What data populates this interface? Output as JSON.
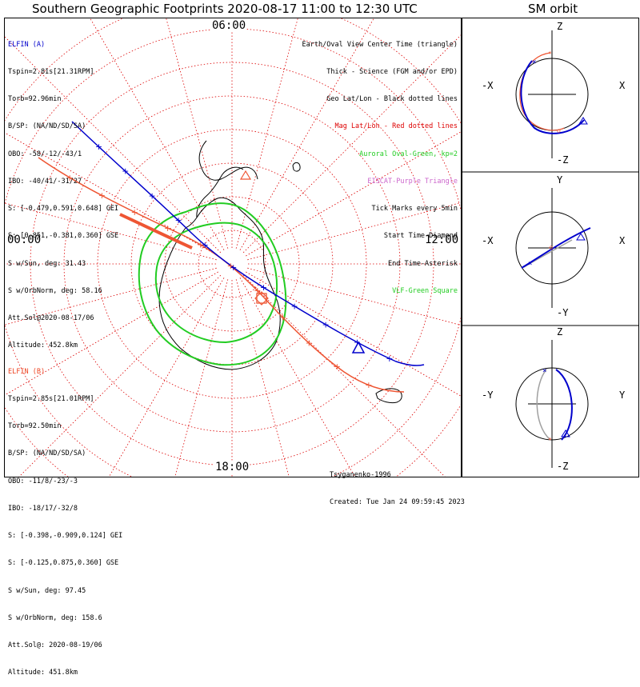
{
  "title": "Southern Geographic Footprints 2020-08-17 11:00 to 12:30 UTC",
  "orbit_title": "SM orbit",
  "hour_labels": {
    "top": "06:00",
    "left": "00:00",
    "right": "12:00",
    "bottom": "18:00"
  },
  "elfin_a": {
    "header": "ELFIN (A)",
    "lines": [
      "Tspin=2.81s[21.31RPM]",
      "Torb=92.96min",
      "B/SP: (NA/ND/SD/SA)",
      "OBO: -58/-12/-43/1",
      "IBO: -40/41/-31/27",
      "S: [-0.479,0.591,0.648] GEI",
      "S: [0.851,-0.381,0.360] GSE",
      "S w/Sun, deg: 31.43",
      "S w/OrbNorm, deg: 58.16",
      "Att.Sol@2020-08-17/06",
      "Altitude: 452.8km"
    ]
  },
  "elfin_b": {
    "header": "ELFIN (B)",
    "lines": [
      "Tspin=2.85s[21.01RPM]",
      "Torb=92.50min",
      "B/SP: (NA/ND/SD/SA)",
      "OBO: -11/8/-23/-3",
      "IBO: -18/17/-32/8",
      "S: [-0.398,-0.909,0.124] GEI",
      "S: [-0.125,0.875,0.360] GSE",
      "S w/Sun, deg: 97.45",
      "S w/OrbNorm, deg: 158.6",
      "Att.Sol@: 2020-08-19/06",
      "Altitude: 451.8km"
    ]
  },
  "legend": [
    {
      "text": "Earth/Oval View Center Time (triangle)",
      "color": "#000000"
    },
    {
      "text": "Thick - Science (FGM and/or EPD)",
      "color": "#000000"
    },
    {
      "text": "Geo Lat/Lon - Black dotted lines",
      "color": "#000000"
    },
    {
      "text": "Mag Lat/Lon - Red dotted lines",
      "color": "#dd0000"
    },
    {
      "text": "Auroral Oval-Green, kp=2",
      "color": "#22cc22"
    },
    {
      "text": "EISCAT-Purple Triangle",
      "color": "#cc66cc"
    },
    {
      "text": "Tick Marks every 5min",
      "color": "#000000"
    },
    {
      "text": "Start Time-Diamond",
      "color": "#000000"
    },
    {
      "text": "End Time-Asterisk",
      "color": "#000000"
    },
    {
      "text": "VLF-Green Square",
      "color": "#22cc22"
    }
  ],
  "footer": {
    "model": "Tsyganenko-1996",
    "created": "Created: Tue Jan 24 09:59:45 2023"
  },
  "panels": [
    {
      "top": "Z",
      "bottom": "-Z",
      "left": "-X",
      "right": "X"
    },
    {
      "top": "Y",
      "bottom": "-Y",
      "left": "-X",
      "right": "X"
    },
    {
      "top": "Z",
      "bottom": "-Z",
      "left": "-Y",
      "right": "Y"
    }
  ],
  "colors": {
    "elfin_a": "#0000cc",
    "elfin_b": "#ee5533",
    "grid": "#dd0000",
    "oval": "#22cc22",
    "gray": "#a0a0a0"
  }
}
